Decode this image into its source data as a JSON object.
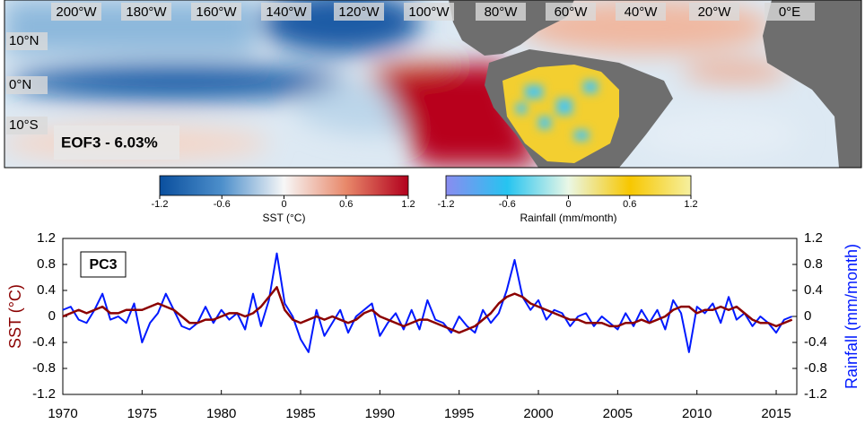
{
  "map": {
    "title": "EOF3 - 6.03%",
    "lon_labels": [
      "200°W",
      "180°W",
      "160°W",
      "140°W",
      "120°W",
      "100°W",
      "80°W",
      "60°W",
      "40°W",
      "20°W",
      "0°E"
    ],
    "lat_labels": [
      "10°N",
      "0°N",
      "10°S"
    ]
  },
  "colorbars": [
    {
      "label": "SST (°C)",
      "lim": [
        -1.2,
        1.2
      ],
      "ticks": [
        -1.2,
        -0.6,
        0,
        0.6,
        1.2
      ],
      "colors": [
        "#0a4f9e",
        "#4d8fcb",
        "#f7f7f7",
        "#e8886a",
        "#b2001d"
      ]
    },
    {
      "label": "Rainfall (mm/month)",
      "lim": [
        -1.2,
        1.2
      ],
      "ticks": [
        -1.2,
        -0.6,
        0,
        0.6,
        1.2
      ],
      "colors": [
        "#8a8cf0",
        "#26c4f0",
        "#eaf7e6",
        "#f7c700",
        "#f6f0a0"
      ]
    }
  ],
  "chart_data": {
    "type": "line",
    "annotation": "PC3",
    "ylabel": "SST (°C)",
    "y2label": "Rainfall (mm/month)",
    "xlim": [
      1970,
      2016.3
    ],
    "xticks": [
      1970,
      1975,
      1980,
      1985,
      1990,
      1995,
      2000,
      2005,
      2010,
      2015
    ],
    "ylim": [
      -1.2,
      1.2
    ],
    "yticks": [
      -1.2,
      -0.8,
      -0.4,
      0,
      0.4,
      0.8,
      1.2
    ],
    "y2lim": [
      -1.2,
      1.2
    ],
    "y2ticks": [
      -1.2,
      -0.8,
      -0.4,
      0,
      0.4,
      0.8,
      1.2
    ],
    "x": [
      1970,
      1970.5,
      1971,
      1971.5,
      1972,
      1972.5,
      1973,
      1973.5,
      1974,
      1974.5,
      1975,
      1975.5,
      1976,
      1976.5,
      1977,
      1977.5,
      1978,
      1978.5,
      1979,
      1979.5,
      1980,
      1980.5,
      1981,
      1981.5,
      1982,
      1982.5,
      1983,
      1983.5,
      1984,
      1984.5,
      1985,
      1985.5,
      1986,
      1986.5,
      1987,
      1987.5,
      1988,
      1988.5,
      1989,
      1989.5,
      1990,
      1990.5,
      1991,
      1991.5,
      1992,
      1992.5,
      1993,
      1993.5,
      1994,
      1994.5,
      1995,
      1995.5,
      1996,
      1996.5,
      1997,
      1997.5,
      1998,
      1998.5,
      1999,
      1999.5,
      2000,
      2000.5,
      2001,
      2001.5,
      2002,
      2002.5,
      2003,
      2003.5,
      2004,
      2004.5,
      2005,
      2005.5,
      2006,
      2006.5,
      2007,
      2007.5,
      2008,
      2008.5,
      2009,
      2009.5,
      2010,
      2010.5,
      2011,
      2011.5,
      2012,
      2012.5,
      2013,
      2013.5,
      2014,
      2014.5,
      2015,
      2015.5,
      2016
    ],
    "series": [
      {
        "color": "#8b0000",
        "axis": "y",
        "values": [
          0,
          0.05,
          0.1,
          0.05,
          0.1,
          0.15,
          0.05,
          0.05,
          0.1,
          0.1,
          0.1,
          0.15,
          0.2,
          0.15,
          0.1,
          0,
          -0.1,
          -0.1,
          -0.05,
          -0.05,
          0,
          0.05,
          0.05,
          0,
          0.05,
          0.15,
          0.3,
          0.45,
          0.1,
          -0.05,
          -0.1,
          -0.05,
          0,
          -0.05,
          0,
          -0.05,
          -0.1,
          -0.05,
          0.05,
          0.1,
          0,
          -0.05,
          -0.1,
          -0.15,
          -0.1,
          -0.05,
          -0.05,
          -0.1,
          -0.15,
          -0.2,
          -0.25,
          -0.2,
          -0.15,
          -0.05,
          0.05,
          0.2,
          0.3,
          0.35,
          0.3,
          0.2,
          0.15,
          0.1,
          0.05,
          0,
          -0.05,
          -0.05,
          -0.1,
          -0.1,
          -0.1,
          -0.15,
          -0.15,
          -0.1,
          -0.1,
          -0.05,
          -0.1,
          -0.05,
          0,
          0.1,
          0.15,
          0.15,
          0.05,
          0.1,
          0.1,
          0.15,
          0.1,
          0.15,
          0.05,
          -0.05,
          -0.1,
          -0.1,
          -0.15,
          -0.1,
          -0.05
        ]
      },
      {
        "color": "#0019ff",
        "axis": "y2",
        "values": [
          0.1,
          0.15,
          -0.05,
          -0.1,
          0.1,
          0.35,
          -0.05,
          0,
          -0.1,
          0.2,
          -0.4,
          -0.1,
          0.05,
          0.35,
          0.1,
          -0.15,
          -0.2,
          -0.1,
          0.15,
          -0.1,
          0.1,
          -0.05,
          0.05,
          -0.2,
          0.35,
          -0.15,
          0.25,
          0.97,
          0.2,
          0,
          -0.35,
          -0.55,
          0.1,
          -0.3,
          -0.1,
          0.1,
          -0.25,
          0,
          0.1,
          0.2,
          -0.3,
          -0.1,
          0.05,
          -0.2,
          0.1,
          -0.2,
          0.25,
          -0.05,
          -0.1,
          -0.25,
          0,
          -0.15,
          -0.25,
          0.1,
          -0.1,
          0.05,
          0.4,
          0.87,
          0.3,
          0.1,
          0.25,
          -0.05,
          0.1,
          0.05,
          -0.15,
          0,
          0.05,
          -0.15,
          0,
          -0.1,
          -0.2,
          0.05,
          -0.15,
          0.1,
          -0.1,
          0.1,
          -0.2,
          0.25,
          0.05,
          -0.55,
          0.15,
          0.05,
          0.2,
          -0.1,
          0.3,
          -0.05,
          0.05,
          -0.15,
          0,
          -0.1,
          -0.25,
          -0.05,
          0
        ]
      }
    ]
  }
}
